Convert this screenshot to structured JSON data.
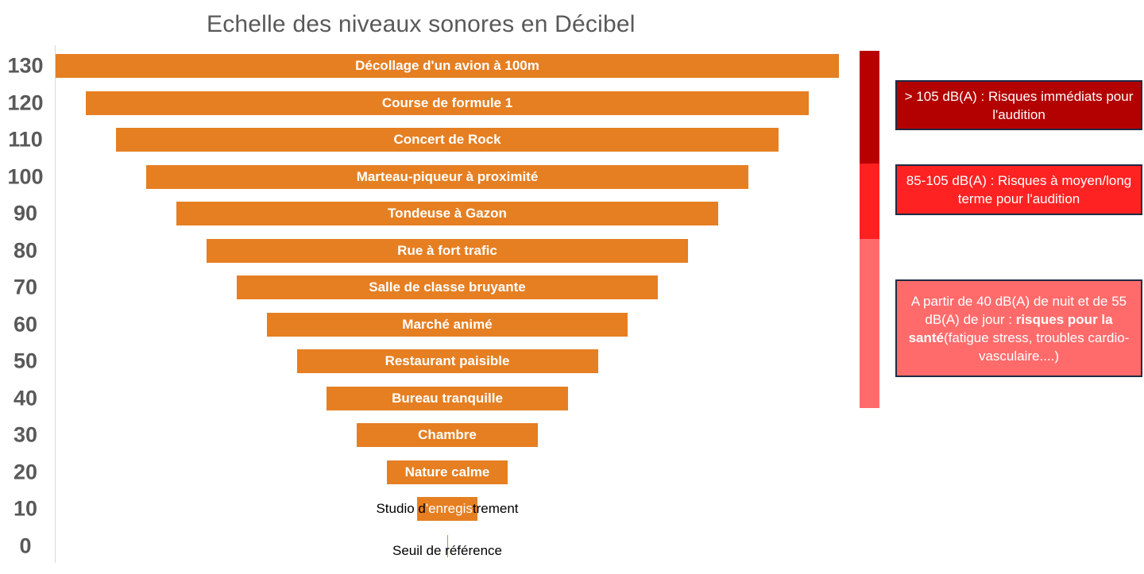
{
  "chart_data": {
    "type": "bar",
    "title": "Echelle des niveaux sonores en Décibel",
    "yticks": [
      "130",
      "120",
      "110",
      "100",
      "90",
      "80",
      "70",
      "60",
      "50",
      "40",
      "30",
      "20",
      "10",
      "0"
    ],
    "bars": [
      {
        "db": 130,
        "label": "Décollage d'un avion à 100m"
      },
      {
        "db": 120,
        "label": "Course de formule 1"
      },
      {
        "db": 110,
        "label": "Concert de Rock"
      },
      {
        "db": 100,
        "label": "Marteau-piqueur à proximité"
      },
      {
        "db": 90,
        "label": "Tondeuse à Gazon"
      },
      {
        "db": 80,
        "label": "Rue à fort trafic"
      },
      {
        "db": 70,
        "label": "Salle de classe bruyante"
      },
      {
        "db": 60,
        "label": "Marché animé"
      },
      {
        "db": 50,
        "label": "Restaurant paisible"
      },
      {
        "db": 40,
        "label": "Bureau tranquille"
      },
      {
        "db": 30,
        "label": "Chambre"
      },
      {
        "db": 20,
        "label": "Nature calme"
      },
      {
        "db": 10,
        "label": "Studio d'enregistrement",
        "label_parts": [
          "Studio d",
          "'enregis",
          "trement"
        ]
      },
      {
        "db": 0,
        "label": "Seuil de référence"
      }
    ],
    "bar_color": "#e57f22",
    "risk_scale": [
      {
        "from": 105,
        "to": 135,
        "color": "#b80000"
      },
      {
        "from": 85,
        "to": 105,
        "color": "#ff2020"
      },
      {
        "from": 40,
        "to": 85,
        "color": "#ff6b6b"
      }
    ]
  },
  "risk_boxes": [
    {
      "text": "> 105 dB(A) : Risques immédiats pour l'audition",
      "color": "#b30000"
    },
    {
      "text": "85-105 dB(A) : Risques à moyen/long terme pour l'audition",
      "color": "#ff2222"
    },
    {
      "text_before": "A partir de 40 dB(A) de nuit et de 55 dB(A) de jour : ",
      "text_bold": "risques pour la santé",
      "text_after": "(fatigue stress, troubles cardio-vasculaire....)",
      "color": "#ff6b6b"
    }
  ]
}
